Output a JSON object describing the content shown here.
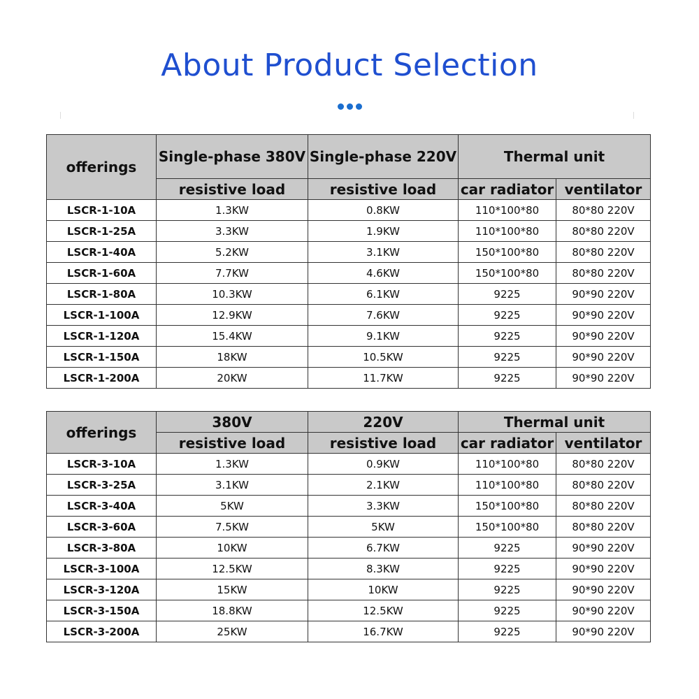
{
  "title": "About Product Selection",
  "tables": [
    {
      "header": {
        "offerings": "offerings",
        "col1": "Single-phase 380V",
        "col2": "Single-phase 220V",
        "thermal": "Thermal unit",
        "sub1": "resistive load",
        "sub2": "resistive load",
        "sub3": "car radiator",
        "sub4": "ventilator"
      },
      "rows": [
        [
          "LSCR-1-10A",
          "1.3KW",
          "0.8KW",
          "110*100*80",
          "80*80 220V"
        ],
        [
          "LSCR-1-25A",
          "3.3KW",
          "1.9KW",
          "110*100*80",
          "80*80 220V"
        ],
        [
          "LSCR-1-40A",
          "5.2KW",
          "3.1KW",
          "150*100*80",
          "80*80 220V"
        ],
        [
          "LSCR-1-60A",
          "7.7KW",
          "4.6KW",
          "150*100*80",
          "80*80 220V"
        ],
        [
          "LSCR-1-80A",
          "10.3KW",
          "6.1KW",
          "9225",
          "90*90 220V"
        ],
        [
          "LSCR-1-100A",
          "12.9KW",
          "7.6KW",
          "9225",
          "90*90 220V"
        ],
        [
          "LSCR-1-120A",
          "15.4KW",
          "9.1KW",
          "9225",
          "90*90 220V"
        ],
        [
          "LSCR-1-150A",
          "18KW",
          "10.5KW",
          "9225",
          "90*90 220V"
        ],
        [
          "LSCR-1-200A",
          "20KW",
          "11.7KW",
          "9225",
          "90*90 220V"
        ]
      ]
    },
    {
      "header": {
        "offerings": "offerings",
        "col1": "380V",
        "col2": "220V",
        "thermal": "Thermal unit",
        "sub1": "resistive load",
        "sub2": "resistive load",
        "sub3": "car radiator",
        "sub4": "ventilator"
      },
      "rows": [
        [
          "LSCR-3-10A",
          "1.3KW",
          "0.9KW",
          "110*100*80",
          "80*80 220V"
        ],
        [
          "LSCR-3-25A",
          "3.1KW",
          "2.1KW",
          "110*100*80",
          "80*80 220V"
        ],
        [
          "LSCR-3-40A",
          "5KW",
          "3.3KW",
          "150*100*80",
          "80*80 220V"
        ],
        [
          "LSCR-3-60A",
          "7.5KW",
          "5KW",
          "150*100*80",
          "80*80 220V"
        ],
        [
          "LSCR-3-80A",
          "10KW",
          "6.7KW",
          "9225",
          "90*90 220V"
        ],
        [
          "LSCR-3-100A",
          "12.5KW",
          "8.3KW",
          "9225",
          "90*90 220V"
        ],
        [
          "LSCR-3-120A",
          "15KW",
          "10KW",
          "9225",
          "90*90 220V"
        ],
        [
          "LSCR-3-150A",
          "18.8KW",
          "12.5KW",
          "9225",
          "90*90 220V"
        ],
        [
          "LSCR-3-200A",
          "25KW",
          "16.7KW",
          "9225",
          "90*90 220V"
        ]
      ]
    }
  ],
  "colors": {
    "title": "#1f4fd0",
    "dots": "#1a6ecf",
    "header_bg": "#c9c9c9"
  }
}
